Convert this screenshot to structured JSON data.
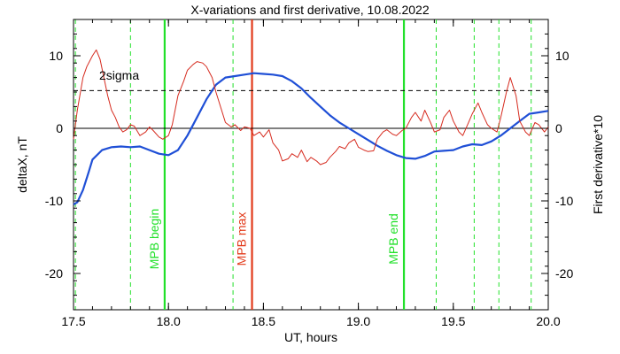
{
  "chart_data": {
    "type": "line",
    "title": "X-variations and first derivative, 10.08.2022",
    "xlabel": "UT, hours",
    "ylabel_left": "deltaX, nT",
    "ylabel_right": "First derivative*10",
    "xlim": [
      17.5,
      20.0
    ],
    "ylim": [
      -25,
      15
    ],
    "x_ticks": [
      17.5,
      18.0,
      18.5,
      19.0,
      19.5,
      20.0
    ],
    "x_tick_labels": [
      "17.5",
      "18.0",
      "18.5",
      "19.0",
      "19.5",
      "20.0"
    ],
    "y_ticks": [
      -20,
      -10,
      0,
      10
    ],
    "y_tick_labels": [
      "-20",
      "-10",
      "0",
      "10"
    ],
    "grid": false,
    "colors": {
      "deltaX": "#1f4fd6",
      "derivative": "#d62b1f",
      "mpb_max": "#e23a1a",
      "mpb_edges": "#22e02a",
      "dashed_green": "#22e02a",
      "zero_line": "#000000",
      "sigma_line": "#000000"
    },
    "series": [
      {
        "axis": "left",
        "x": [
          17.5,
          17.52,
          17.55,
          17.58,
          17.6,
          17.65,
          17.7,
          17.75,
          17.8,
          17.85,
          17.9,
          17.95,
          18.0,
          18.05,
          18.1,
          18.15,
          18.2,
          18.25,
          18.3,
          18.35,
          18.4,
          18.45,
          18.5,
          18.55,
          18.6,
          18.65,
          18.7,
          18.75,
          18.8,
          18.85,
          18.9,
          18.95,
          19.0,
          19.05,
          19.1,
          19.15,
          19.2,
          19.25,
          19.3,
          19.35,
          19.4,
          19.45,
          19.5,
          19.55,
          19.6,
          19.65,
          19.7,
          19.75,
          19.8,
          19.85,
          19.9,
          19.95,
          20.0
        ],
        "y": [
          -10.5,
          -10.2,
          -8.5,
          -6.0,
          -4.3,
          -3.0,
          -2.6,
          -2.5,
          -2.6,
          -2.5,
          -3.0,
          -3.5,
          -3.7,
          -3.0,
          -1.0,
          1.5,
          4.0,
          6.0,
          7.0,
          7.2,
          7.4,
          7.6,
          7.5,
          7.4,
          7.2,
          6.5,
          5.5,
          4.2,
          3.0,
          1.8,
          0.8,
          0.0,
          -0.8,
          -1.6,
          -2.4,
          -3.1,
          -3.7,
          -4.1,
          -4.2,
          -3.8,
          -3.2,
          -3.1,
          -3.0,
          -2.5,
          -2.2,
          -2.3,
          -1.8,
          -1.0,
          0.0,
          1.0,
          2.0,
          2.2,
          2.4
        ]
      },
      {
        "axis": "right",
        "x": [
          17.5,
          17.52,
          17.55,
          17.57,
          17.6,
          17.62,
          17.64,
          17.66,
          17.68,
          17.7,
          17.72,
          17.74,
          17.76,
          17.78,
          17.8,
          17.82,
          17.85,
          17.88,
          17.9,
          17.92,
          17.95,
          17.97,
          18.0,
          18.02,
          18.05,
          18.08,
          18.1,
          18.13,
          18.15,
          18.18,
          18.2,
          18.23,
          18.25,
          18.28,
          18.3,
          18.33,
          18.35,
          18.38,
          18.4,
          18.43,
          18.45,
          18.48,
          18.5,
          18.53,
          18.55,
          18.58,
          18.6,
          18.63,
          18.65,
          18.68,
          18.7,
          18.73,
          18.75,
          18.78,
          18.8,
          18.83,
          18.85,
          18.88,
          18.9,
          18.93,
          18.95,
          18.98,
          19.0,
          19.03,
          19.05,
          19.08,
          19.1,
          19.13,
          19.15,
          19.18,
          19.2,
          19.23,
          19.25,
          19.28,
          19.3,
          19.33,
          19.35,
          19.38,
          19.4,
          19.43,
          19.45,
          19.48,
          19.5,
          19.53,
          19.55,
          19.58,
          19.6,
          19.63,
          19.65,
          19.68,
          19.7,
          19.73,
          19.75,
          19.78,
          19.8,
          19.83,
          19.85,
          19.88,
          19.9,
          19.93,
          19.95,
          19.98,
          20.0
        ],
        "y": [
          -1.5,
          2.5,
          7.0,
          8.5,
          10.0,
          10.8,
          9.5,
          7.0,
          4.5,
          2.5,
          1.5,
          0.2,
          -0.5,
          -0.2,
          0.5,
          0.3,
          -1.0,
          -0.5,
          0.2,
          -0.3,
          -1.2,
          -1.5,
          -1.0,
          0.5,
          4.5,
          6.5,
          8.0,
          8.8,
          9.2,
          9.0,
          8.5,
          7.0,
          5.0,
          2.5,
          0.8,
          0.2,
          0.5,
          -0.3,
          0.2,
          0.0,
          -1.0,
          -0.5,
          -1.2,
          -0.2,
          -2.0,
          -3.0,
          -4.5,
          -4.2,
          -3.5,
          -4.0,
          -3.0,
          -4.6,
          -4.0,
          -4.5,
          -5.0,
          -4.7,
          -4.0,
          -3.2,
          -2.5,
          -2.8,
          -2.0,
          -1.5,
          -2.6,
          -3.0,
          -3.2,
          -3.1,
          -1.5,
          -0.5,
          -0.2,
          -0.8,
          -1.0,
          -0.3,
          0.0,
          1.5,
          2.2,
          1.0,
          2.5,
          0.8,
          -0.5,
          -0.2,
          1.5,
          2.5,
          1.0,
          -0.5,
          -1.0,
          0.8,
          2.0,
          3.5,
          2.2,
          0.5,
          0.0,
          -0.5,
          1.5,
          5.0,
          7.0,
          4.5,
          1.0,
          -0.5,
          -1.0,
          0.8,
          0.5,
          -0.5,
          0.2
        ]
      }
    ],
    "reference_lines": {
      "sigma_y": 5.2,
      "sigma_label": "2sigma",
      "zero_y": 0
    },
    "vertical_lines": {
      "solid": [
        {
          "x": 17.98,
          "label": "MPB begin",
          "color_key": "mpb_edges"
        },
        {
          "x": 18.44,
          "label": "MPB max",
          "color_key": "mpb_max"
        },
        {
          "x": 19.24,
          "label": "MPB end",
          "color_key": "mpb_edges"
        }
      ],
      "dashed_x": [
        17.51,
        17.8,
        18.34,
        19.41,
        19.61,
        19.74,
        19.91
      ]
    }
  }
}
